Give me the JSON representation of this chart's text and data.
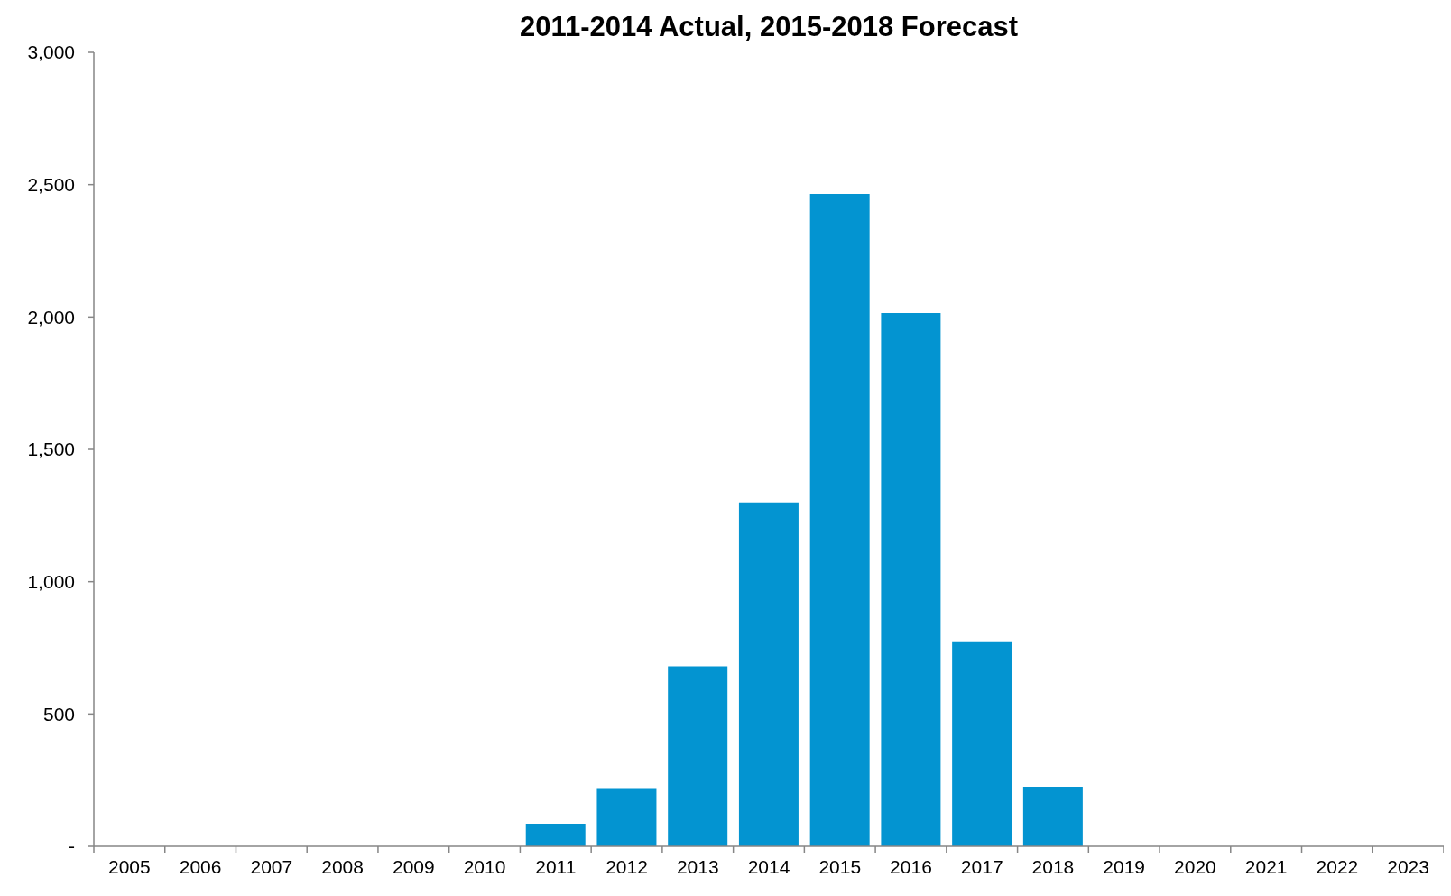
{
  "chart_data": {
    "type": "bar",
    "title": "2011-2014 Actual, 2015-2018 Forecast",
    "categories": [
      "2005",
      "2006",
      "2007",
      "2008",
      "2009",
      "2010",
      "2011",
      "2012",
      "2013",
      "2014",
      "2015",
      "2016",
      "2017",
      "2018",
      "2019",
      "2020",
      "2021",
      "2022",
      "2023"
    ],
    "values": [
      null,
      null,
      null,
      null,
      null,
      null,
      85,
      220,
      680,
      1300,
      2465,
      2015,
      775,
      225,
      null,
      null,
      null,
      null,
      null
    ],
    "color": "#0394d1",
    "ylim": [
      0,
      3000
    ],
    "yticks": [
      {
        "value": 0,
        "label": "-"
      },
      500,
      {
        "value": 1000,
        "label": "1,000"
      },
      {
        "value": 1500,
        "label": "1,500"
      },
      {
        "value": 2000,
        "label": "2,000"
      },
      {
        "value": 2500,
        "label": "2,500"
      },
      {
        "value": 3000,
        "label": "3,000"
      }
    ]
  }
}
